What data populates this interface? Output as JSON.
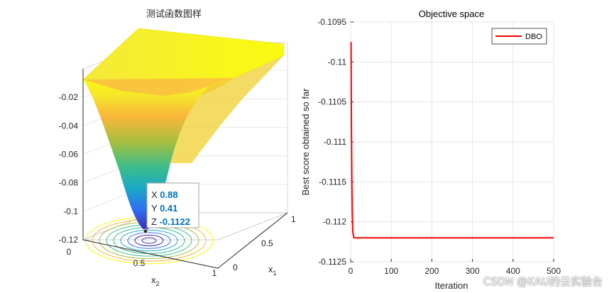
{
  "chart_data": [
    {
      "type": "surface",
      "title": "测试函数图样",
      "xlabel": "x",
      "xlabel_sub": "1",
      "ylabel": "x",
      "ylabel_sub": "2",
      "z_ticks": [
        "-0.12",
        "-0.1",
        "-0.08",
        "-0.06",
        "-0.04",
        "-0.02"
      ],
      "x1_ticks": [
        "0",
        "0.5",
        "1"
      ],
      "x2_ticks": [
        "0",
        "0.5",
        "1"
      ],
      "zlim": [
        -0.12,
        0
      ],
      "colormap": [
        "#3e26a8",
        "#2f6ef4",
        "#1aa9c6",
        "#3cbd8a",
        "#a5be3f",
        "#fbb63b",
        "#f9fb0e"
      ],
      "datatip": {
        "x_label": "X",
        "x_value": "0.88",
        "y_label": "Y",
        "y_value": "0.41",
        "z_label": "Z",
        "z_value": "-0.1122",
        "value_color": "#0072bd"
      }
    },
    {
      "type": "line",
      "title": "Objective space",
      "xlabel": "Iteration",
      "ylabel": "Best score obtained so far",
      "xlim": [
        0,
        500
      ],
      "ylim": [
        -0.1125,
        -0.1095
      ],
      "x_ticks": [
        "0",
        "100",
        "200",
        "300",
        "400",
        "500"
      ],
      "y_ticks": [
        "-0.1095",
        "-0.11",
        "-0.1105",
        "-0.111",
        "-0.1115",
        "-0.112",
        "-0.1125"
      ],
      "grid": true,
      "legend_position": "top-right",
      "series": [
        {
          "name": "DBO",
          "color": "#ff0000",
          "x": [
            1,
            2,
            3,
            4,
            5,
            6,
            8,
            10,
            15,
            20,
            50,
            100,
            200,
            300,
            400,
            500
          ],
          "y": [
            -0.10975,
            -0.1108,
            -0.1115,
            -0.1119,
            -0.1121,
            -0.11215,
            -0.1122,
            -0.1122,
            -0.1122,
            -0.1122,
            -0.1122,
            -0.1122,
            -0.1122,
            -0.1122,
            -0.1122,
            -0.1122
          ]
        }
      ]
    }
  ],
  "watermark": "CSDN @KAU的云实验台"
}
